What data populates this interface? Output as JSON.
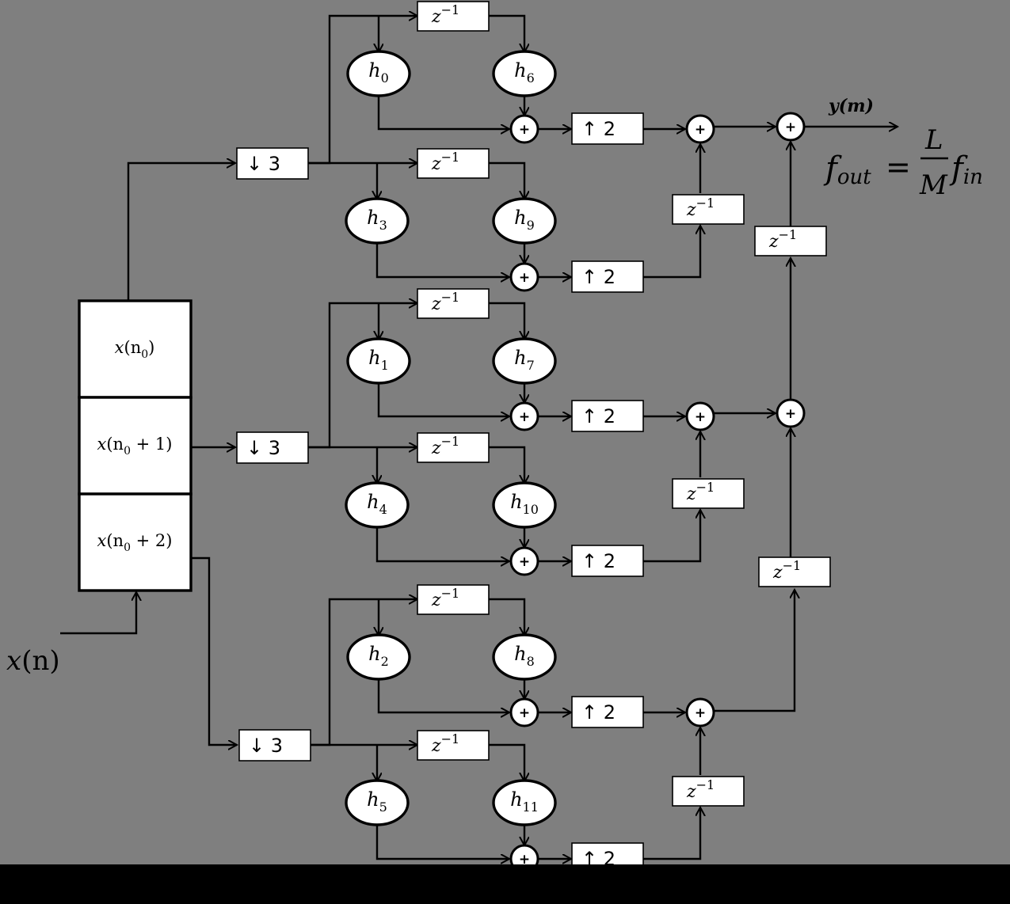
{
  "input": {
    "label": "x(n)",
    "var": "x",
    "arg": "(n)"
  },
  "buffer": [
    {
      "var": "x",
      "sub": "0",
      "text": "x(n0)",
      "pre": "(n",
      "post": ")"
    },
    {
      "var": "x",
      "sub": "0",
      "text": "x(n0 + 1)",
      "pre": "(n",
      "post": " + 1)"
    },
    {
      "var": "x",
      "sub": "0",
      "text": "x(n0 + 2)",
      "pre": "(n",
      "post": " + 2)"
    }
  ],
  "decimator_label": "↓ 3",
  "interpolator_label": "↑ 2",
  "delay": {
    "base": "z",
    "exp": "−1"
  },
  "adder_symbol": "+",
  "filter_coefficients": [
    {
      "var": "h",
      "sub": "0"
    },
    {
      "var": "h",
      "sub": "1"
    },
    {
      "var": "h",
      "sub": "2"
    },
    {
      "var": "h",
      "sub": "3"
    },
    {
      "var": "h",
      "sub": "4"
    },
    {
      "var": "h",
      "sub": "5"
    },
    {
      "var": "h",
      "sub": "6"
    },
    {
      "var": "h",
      "sub": "7"
    },
    {
      "var": "h",
      "sub": "8"
    },
    {
      "var": "h",
      "sub": "9"
    },
    {
      "var": "h",
      "sub": "10"
    },
    {
      "var": "h",
      "sub": "11"
    }
  ],
  "output": {
    "label": "y(m)"
  },
  "rate_equation": {
    "lhs_var": "f",
    "lhs_sub": "out",
    "equals": "=",
    "numerator": "L",
    "denominator": "M",
    "rhs_var": "f",
    "rhs_sub": "in"
  }
}
